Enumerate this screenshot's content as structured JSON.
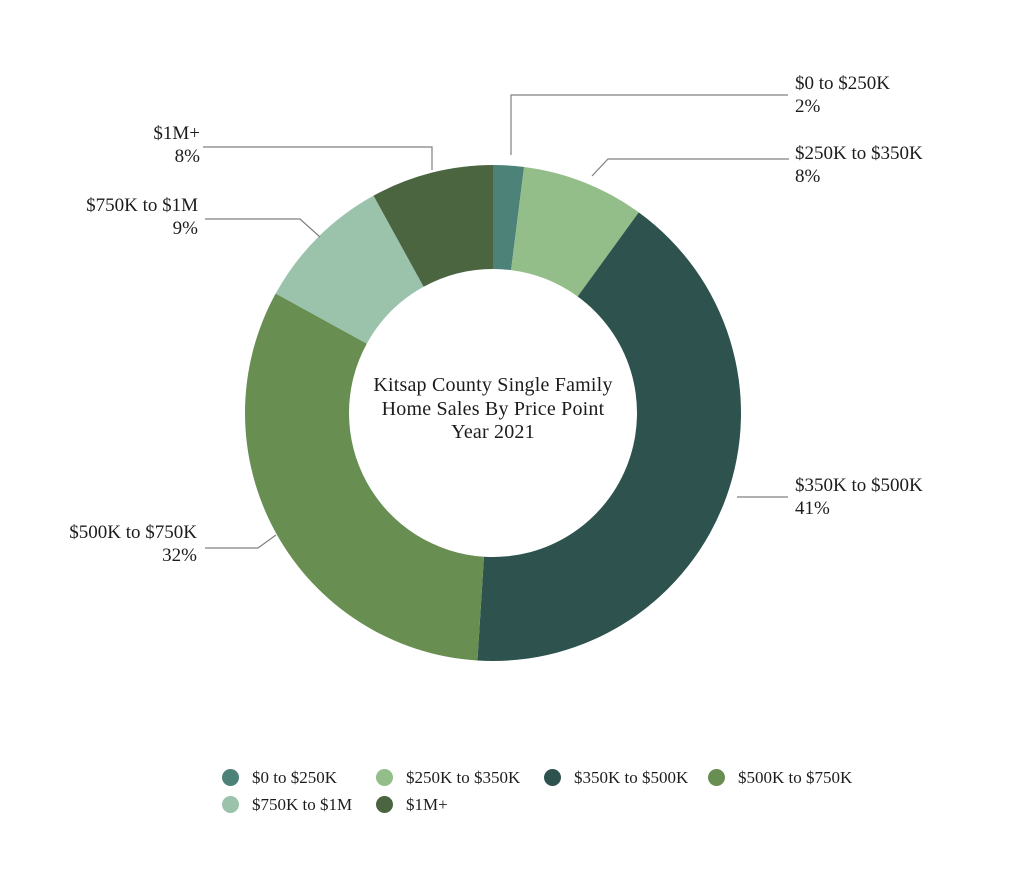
{
  "page": {
    "background_color": "#ffffff",
    "text_color": "#1c1c1c",
    "leader_line_color": "#808080"
  },
  "chart_data": {
    "type": "pie",
    "variant": "donut",
    "title": "Kitsap County Single Family Home Sales By Price Point Year 2021",
    "center_title_lines": [
      "Kitsap County Single Family",
      "Home Sales By Price Point",
      "Year 2021"
    ],
    "unit": "%",
    "start_position": "12-oclock",
    "direction": "clockwise",
    "categories": [
      "$0 to $250K",
      "$250K to $350K",
      "$350K to $500K",
      "$500K to $750K",
      "$750K to $1M",
      "$1M+"
    ],
    "values": [
      2,
      8,
      41,
      32,
      9,
      8
    ],
    "segments": [
      {
        "label": "$0 to $250K",
        "value": 2,
        "pct_label": "2%",
        "color": "#4C8278"
      },
      {
        "label": "$250K to $350K",
        "value": 8,
        "pct_label": "8%",
        "color": "#93BD89"
      },
      {
        "label": "$350K to $500K",
        "value": 41,
        "pct_label": "41%",
        "color": "#2E534F"
      },
      {
        "label": "$500K to $750K",
        "value": 32,
        "pct_label": "32%",
        "color": "#688E52"
      },
      {
        "label": "$750K to $1M",
        "value": 9,
        "pct_label": "9%",
        "color": "#9BC3AC"
      },
      {
        "label": "$1M+",
        "value": 8,
        "pct_label": "8%",
        "color": "#4C6541"
      }
    ],
    "legend": {
      "position": "bottom",
      "entries": [
        "$0 to $250K",
        "$250K to $350K",
        "$350K to $500K",
        "$500K to $750K",
        "$750K to $1M",
        "$1M+"
      ]
    }
  }
}
